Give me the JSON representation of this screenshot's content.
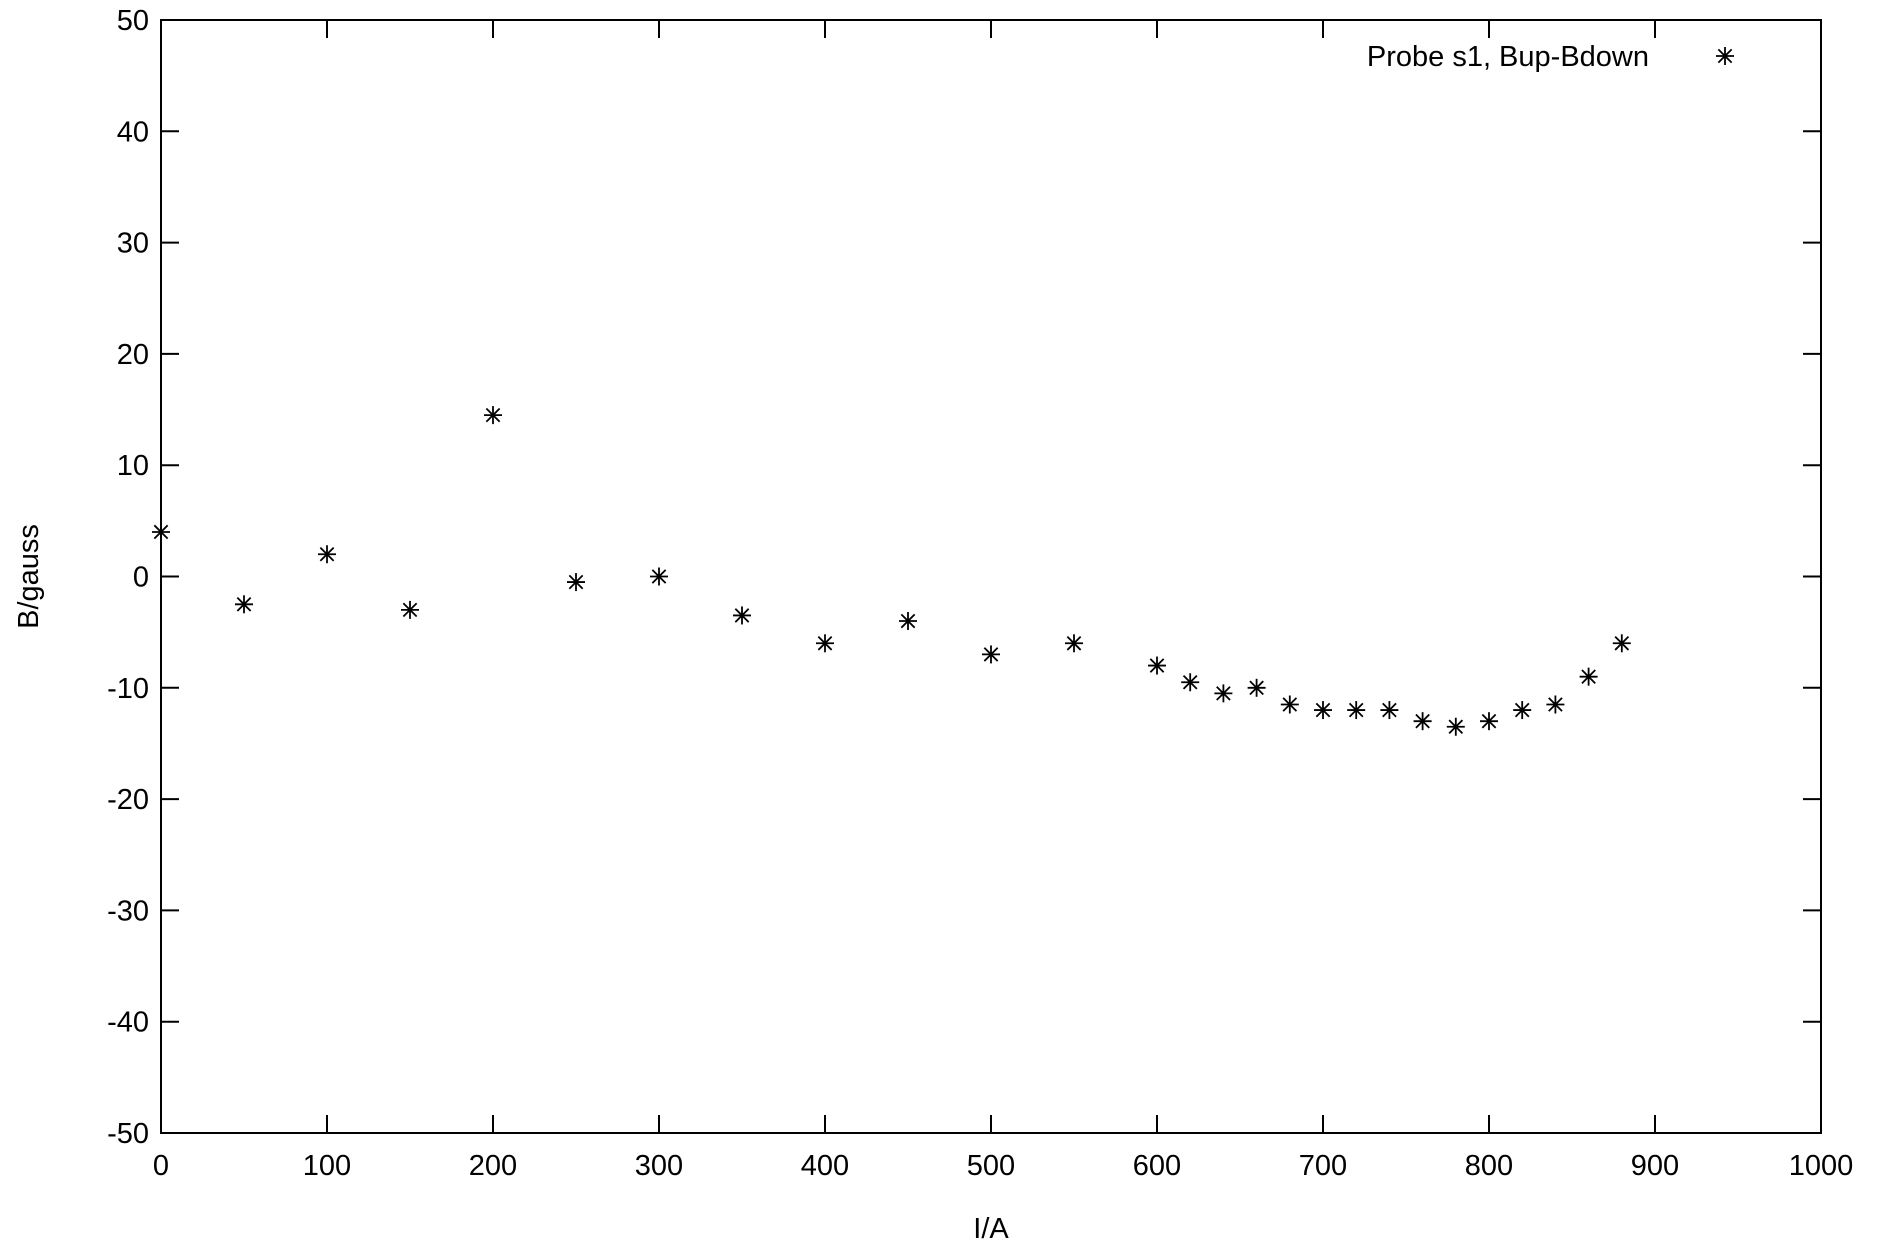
{
  "chart_data": {
    "type": "scatter",
    "xlabel": "I/A",
    "ylabel": "B/gauss",
    "xlim": [
      0,
      1000
    ],
    "ylim": [
      -50,
      50
    ],
    "xticks": [
      0,
      100,
      200,
      300,
      400,
      500,
      600,
      700,
      800,
      900,
      1000
    ],
    "yticks": [
      -50,
      -40,
      -30,
      -20,
      -10,
      0,
      10,
      20,
      30,
      40,
      50
    ],
    "grid": false,
    "legend_position": "top-right",
    "series": [
      {
        "name": "Probe s1, Bup-Bdown",
        "marker": "asterisk",
        "color": "#000000",
        "x": [
          0,
          50,
          100,
          150,
          200,
          250,
          300,
          350,
          400,
          450,
          500,
          550,
          600,
          620,
          640,
          660,
          680,
          700,
          720,
          740,
          760,
          780,
          800,
          820,
          840,
          860,
          880
        ],
        "y": [
          4,
          -2.5,
          2,
          -3,
          14.5,
          -0.5,
          0,
          -3.5,
          -6,
          -4,
          -7,
          -6,
          -8,
          -9.5,
          -10.5,
          -10,
          -11.5,
          -12,
          -12,
          -12,
          -13,
          -13.5,
          -13,
          -12,
          -11.5,
          -9,
          -6
        ]
      }
    ]
  }
}
